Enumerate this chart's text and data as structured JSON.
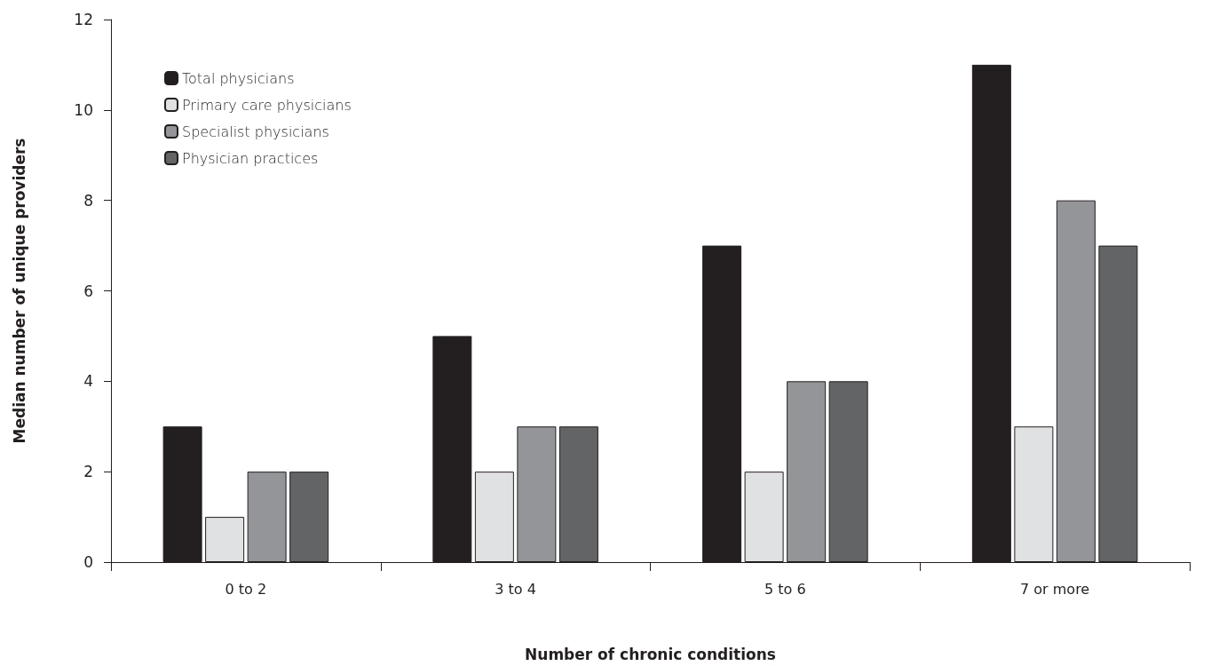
{
  "chart_data": {
    "type": "bar",
    "xlabel": "Number of chronic conditions",
    "ylabel": "Median number of unique providers",
    "categories": [
      "0 to 2",
      "3 to 4",
      "5 to 6",
      "7 or more"
    ],
    "series": [
      {
        "name": "Total physicians",
        "color": "#231f20",
        "values": [
          3,
          5,
          7,
          11
        ]
      },
      {
        "name": "Primary care physicians",
        "color": "#e0e1e3",
        "values": [
          1,
          2,
          2,
          3
        ]
      },
      {
        "name": "Specialist physicians",
        "color": "#939598",
        "values": [
          2,
          3,
          4,
          8
        ]
      },
      {
        "name": "Physician practices",
        "color": "#636466",
        "values": [
          2,
          3,
          4,
          7
        ]
      }
    ],
    "ylim": [
      0,
      12
    ],
    "yticks": [
      0,
      2,
      4,
      6,
      8,
      10,
      12
    ],
    "grid": false,
    "legend": "top left"
  }
}
